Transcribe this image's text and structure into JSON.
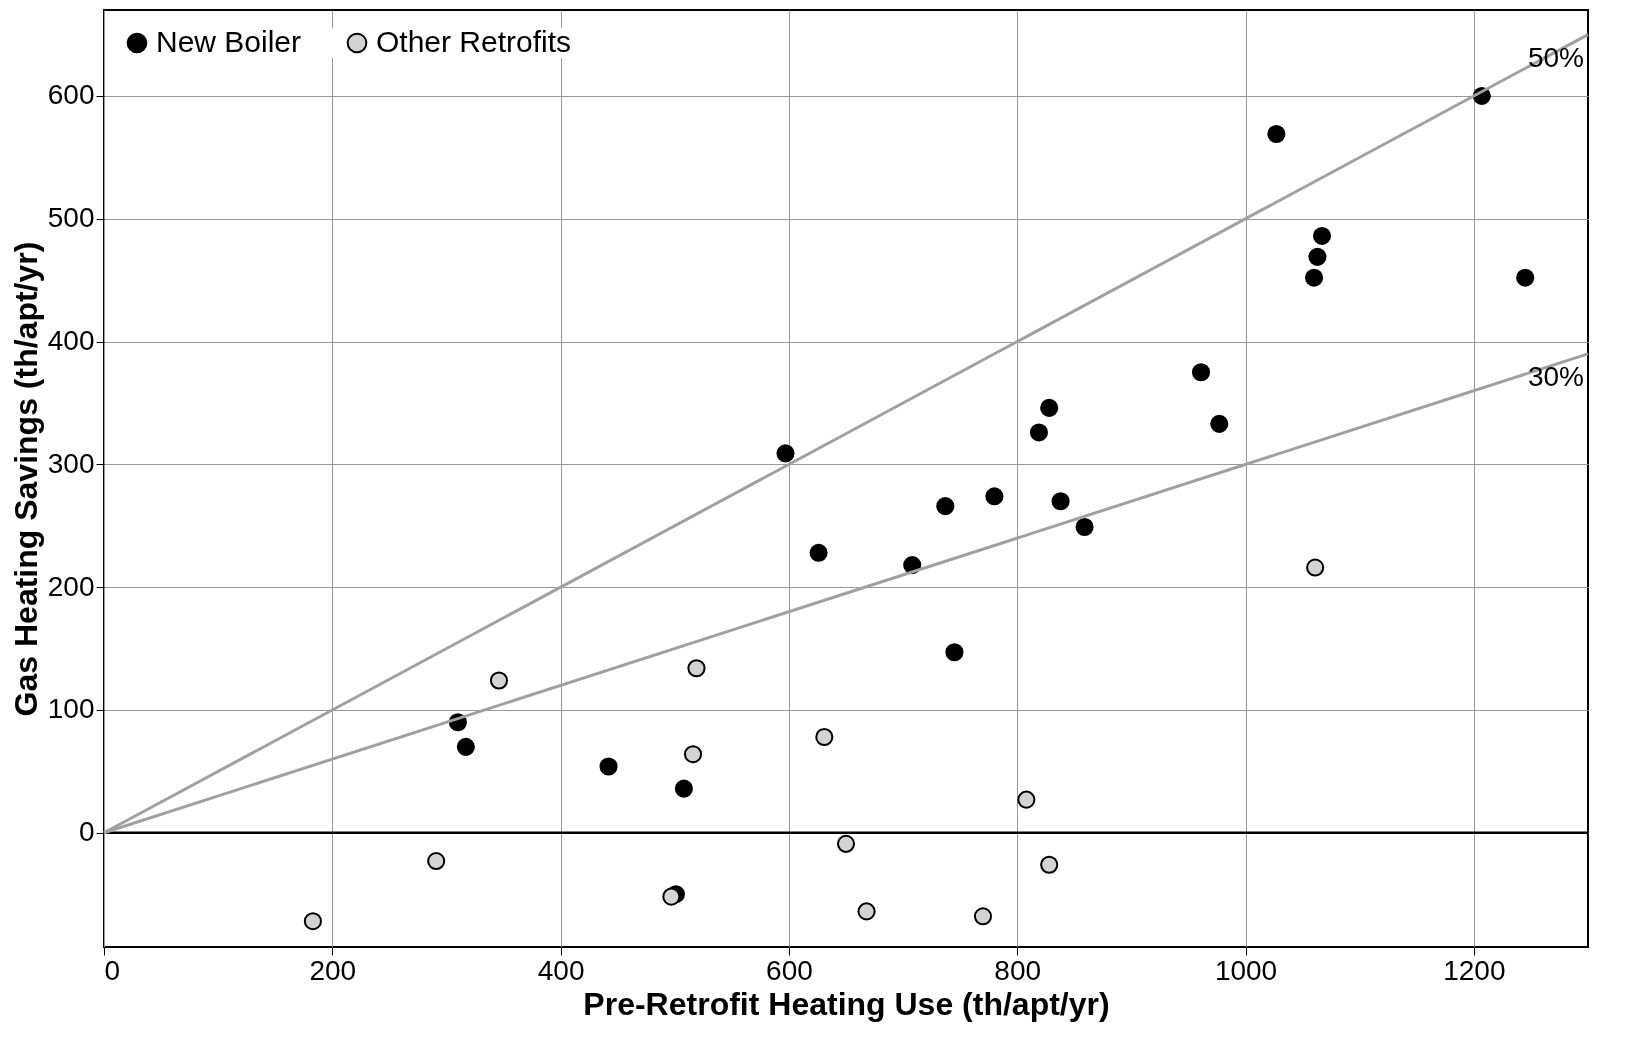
{
  "chart_data": {
    "type": "scatter",
    "xlabel": "Pre-Retrofit Heating Use (th/apt/yr)",
    "ylabel": "Gas Heating Savings (th/apt/yr)",
    "xlim": [
      0,
      1300
    ],
    "ylim": [
      -93,
      670
    ],
    "xticks": [
      0,
      200,
      400,
      600,
      800,
      1000,
      1200
    ],
    "yticks": [
      0,
      100,
      200,
      300,
      400,
      500,
      600
    ],
    "grid": true,
    "legend": "top left",
    "marker": "circle",
    "ref_lines": [
      {
        "axis": "y",
        "value": 0,
        "color": "#000000"
      }
    ],
    "series": [
      {
        "name": "New Boiler",
        "color": "#000000",
        "x": [
          1207,
          1027,
          1067,
          1063,
          1060,
          1245,
          961,
          977,
          828,
          819,
          838,
          859,
          780,
          737,
          597,
          626,
          708,
          745,
          310,
          317,
          442,
          508,
          501
        ],
        "values": [
          600,
          569,
          486,
          469,
          452,
          452,
          375,
          333,
          346,
          326,
          270,
          249,
          274,
          266,
          309,
          228,
          218,
          147,
          90,
          70,
          54,
          36,
          -50
        ]
      },
      {
        "name": "Other Retrofits",
        "color": "#d3d3d3",
        "x": [
          1061,
          346,
          519,
          631,
          516,
          808,
          291,
          650,
          828,
          497,
          668,
          770,
          183
        ],
        "values": [
          216,
          124,
          134,
          78,
          64,
          27,
          -23,
          -9,
          -26,
          -52,
          -64,
          -68,
          -72
        ]
      },
      {
        "type": "line",
        "name": "50%",
        "color": "#a0a0a0",
        "x": [
          0,
          1300
        ],
        "values": [
          0,
          650
        ],
        "marker": "none"
      },
      {
        "type": "line",
        "name": "30%",
        "color": "#a0a0a0",
        "x": [
          0,
          1300
        ],
        "values": [
          0,
          390
        ],
        "marker": "none"
      }
    ]
  }
}
